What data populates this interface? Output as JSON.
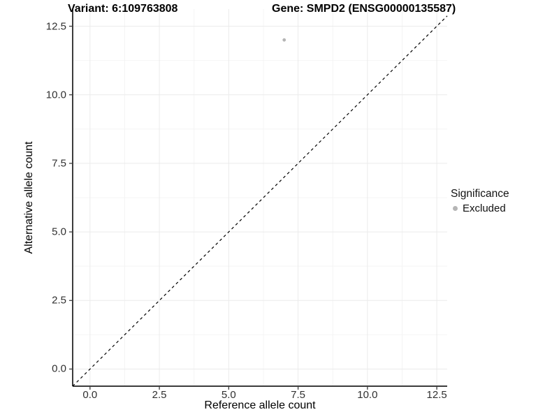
{
  "chart_data": {
    "type": "scatter",
    "title_left": "Variant: 6:109763808",
    "title_right": "Gene: SMPD2 (ENSG00000135587)",
    "xlabel": "Reference allele count",
    "ylabel": "Alternative allele count",
    "xlim": [
      -0.625,
      12.875
    ],
    "ylim": [
      -0.625,
      13.125
    ],
    "x_ticks": {
      "values": [
        0,
        2.5,
        5,
        7.5,
        10,
        12.5
      ],
      "labels": [
        "0.0",
        "2.5",
        "5.0",
        "7.5",
        "10.0",
        "12.5"
      ]
    },
    "y_ticks": {
      "values": [
        0,
        2.5,
        5,
        7.5,
        10,
        12.5
      ],
      "labels": [
        "0.0",
        "2.5",
        "5.0",
        "7.5",
        "10.0",
        "12.5"
      ]
    },
    "minor_ticks": [
      1.25,
      3.75,
      6.25,
      8.75,
      11.25
    ],
    "grid": true,
    "legend_position": "right",
    "points": [
      {
        "x": 7,
        "y": 12,
        "series": "Excluded"
      }
    ],
    "reference_line": {
      "kind": "identity",
      "style": "dashed"
    },
    "legend": {
      "title": "Significance",
      "items": [
        {
          "label": "Excluded",
          "color": "#b5b5b5"
        }
      ]
    },
    "colors": {
      "point_excluded": "#b5b5b5",
      "grid_major": "#ebebeb",
      "grid_minor": "#f4f4f4",
      "axis_line": "#3c3c3c",
      "tick_mark": "#3c3c3c",
      "dashed_line": "#000000",
      "background": "#ffffff"
    }
  }
}
